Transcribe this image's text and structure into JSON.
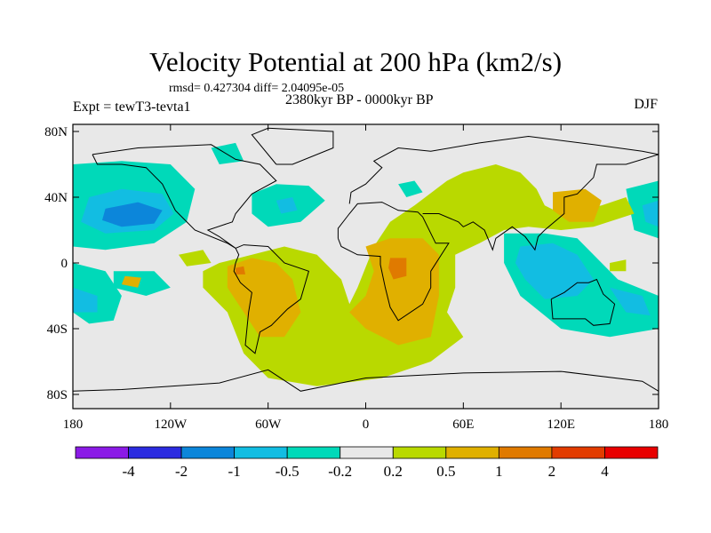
{
  "title": "Velocity Potential at 200 hPa (km2/s)",
  "stats": "rmsd= 0.427304 diff= 2.04095e-05",
  "period": "2380kyr BP - 0000kyr BP",
  "experiment": "Expt = tewT3-tevta1",
  "season": "DJF",
  "chart_data": {
    "type": "heatmap",
    "projection": "cylindrical-equidistant",
    "lat_ticks": [
      {
        "v": 80,
        "label": "80N"
      },
      {
        "v": 40,
        "label": "40N"
      },
      {
        "v": 0,
        "label": "0"
      },
      {
        "v": -40,
        "label": "40S"
      },
      {
        "v": -80,
        "label": "80S"
      }
    ],
    "lon_ticks": [
      {
        "v": -180,
        "label": "180"
      },
      {
        "v": -120,
        "label": "120W"
      },
      {
        "v": -60,
        "label": "60W"
      },
      {
        "v": 0,
        "label": "0"
      },
      {
        "v": 60,
        "label": "60E"
      },
      {
        "v": 120,
        "label": "120E"
      },
      {
        "v": 180,
        "label": "180"
      }
    ],
    "levels": [
      "-4",
      "-2",
      "-1",
      "-0.5",
      "-0.2",
      "0.2",
      "0.5",
      "1",
      "2",
      "4"
    ],
    "colors": [
      "#8b1ae6",
      "#2b2be0",
      "#0c86da",
      "#12bde2",
      "#00d9b9",
      "#e8e8e8",
      "#b9d900",
      "#e0b000",
      "#e07a00",
      "#e23c00",
      "#e80000"
    ]
  }
}
